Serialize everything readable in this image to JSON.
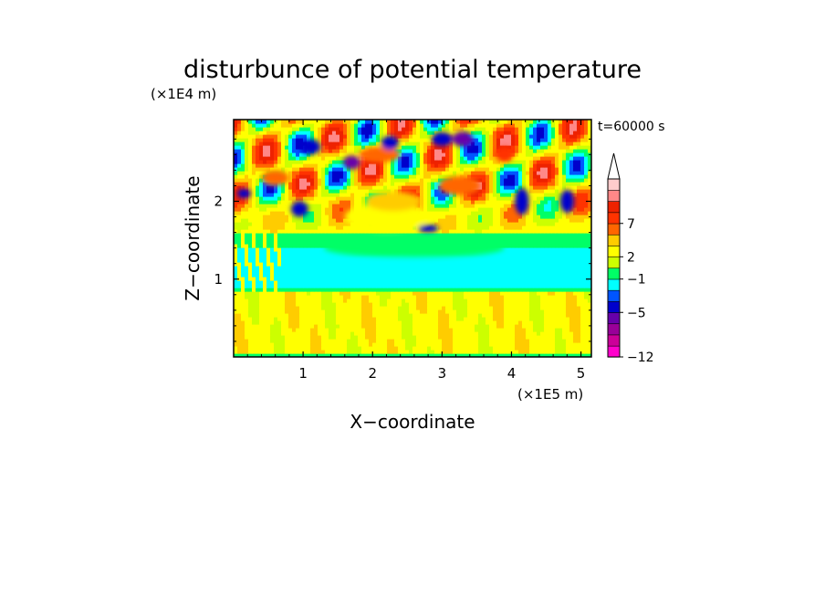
{
  "chart_data": {
    "type": "heatmap",
    "title": "disturbunce of potential temperature",
    "annotation": "t=60000 s",
    "xlabel": "X−coordinate",
    "ylabel": "Z−coordinate",
    "x_scale_label": "(×1E5 m)",
    "y_scale_label": "(×1E4 m)",
    "xlim": [
      0,
      5.15
    ],
    "ylim": [
      0,
      3.05
    ],
    "x_ticks": [
      {
        "value": 1,
        "label": "1"
      },
      {
        "value": 2,
        "label": "2"
      },
      {
        "value": 3,
        "label": "3"
      },
      {
        "value": 4,
        "label": "4"
      },
      {
        "value": 5,
        "label": "5"
      }
    ],
    "y_ticks": [
      {
        "value": 1,
        "label": "1"
      },
      {
        "value": 2,
        "label": "2"
      }
    ],
    "colorbar": {
      "colors": [
        "#ff00cc",
        "#cc0099",
        "#990099",
        "#6600aa",
        "#0000cc",
        "#0055ff",
        "#00ffff",
        "#00ff66",
        "#ccff00",
        "#ffff00",
        "#ffcc00",
        "#ff6600",
        "#ff3300",
        "#ee2200",
        "#ff8888",
        "#ffcccc"
      ],
      "top_color": "#ffffff",
      "labels": [
        {
          "index": 0,
          "label": "−12"
        },
        {
          "index": 4,
          "label": "−5"
        },
        {
          "index": 7,
          "label": "−1"
        },
        {
          "index": 9,
          "label": "2"
        },
        {
          "index": 12,
          "label": "7"
        }
      ]
    },
    "features": [
      {
        "x": 2.6,
        "z": 1.1,
        "w": 2.4,
        "h": 0.35,
        "level": 6
      },
      {
        "x": 2.6,
        "z": 1.4,
        "w": 2.6,
        "h": 0.25,
        "level": 7
      },
      {
        "x": 2.2,
        "z": 1.8,
        "w": 1.2,
        "h": 0.35,
        "level": 9
      },
      {
        "x": 2.3,
        "z": 2.0,
        "w": 0.8,
        "h": 0.25,
        "level": 10
      },
      {
        "x": 2.1,
        "z": 2.6,
        "w": 0.6,
        "h": 0.2,
        "level": 11
      },
      {
        "x": 1.7,
        "z": 2.5,
        "w": 0.25,
        "h": 0.18,
        "level": 3
      },
      {
        "x": 1.1,
        "z": 2.7,
        "w": 0.3,
        "h": 0.2,
        "level": 4
      },
      {
        "x": 0.95,
        "z": 1.9,
        "w": 0.25,
        "h": 0.2,
        "level": 4
      },
      {
        "x": 2.25,
        "z": 2.75,
        "w": 0.25,
        "h": 0.18,
        "level": 4
      },
      {
        "x": 3.3,
        "z": 2.8,
        "w": 0.3,
        "h": 0.2,
        "level": 3
      },
      {
        "x": 3.0,
        "z": 2.8,
        "w": 0.3,
        "h": 0.18,
        "level": 4
      },
      {
        "x": 3.25,
        "z": 2.2,
        "w": 0.6,
        "h": 0.25,
        "level": 11
      },
      {
        "x": 3.9,
        "z": 2.6,
        "w": 0.25,
        "h": 0.2,
        "level": 12
      },
      {
        "x": 4.15,
        "z": 2.0,
        "w": 0.2,
        "h": 0.35,
        "level": 4
      },
      {
        "x": 4.8,
        "z": 2.0,
        "w": 0.2,
        "h": 0.3,
        "level": 4
      },
      {
        "x": 0.15,
        "z": 2.1,
        "w": 0.2,
        "h": 0.12,
        "level": 4
      },
      {
        "x": 2.8,
        "z": 1.65,
        "w": 0.3,
        "h": 0.1,
        "level": 4
      },
      {
        "x": 0.6,
        "z": 2.3,
        "w": 0.4,
        "h": 0.2,
        "level": 11
      }
    ]
  }
}
